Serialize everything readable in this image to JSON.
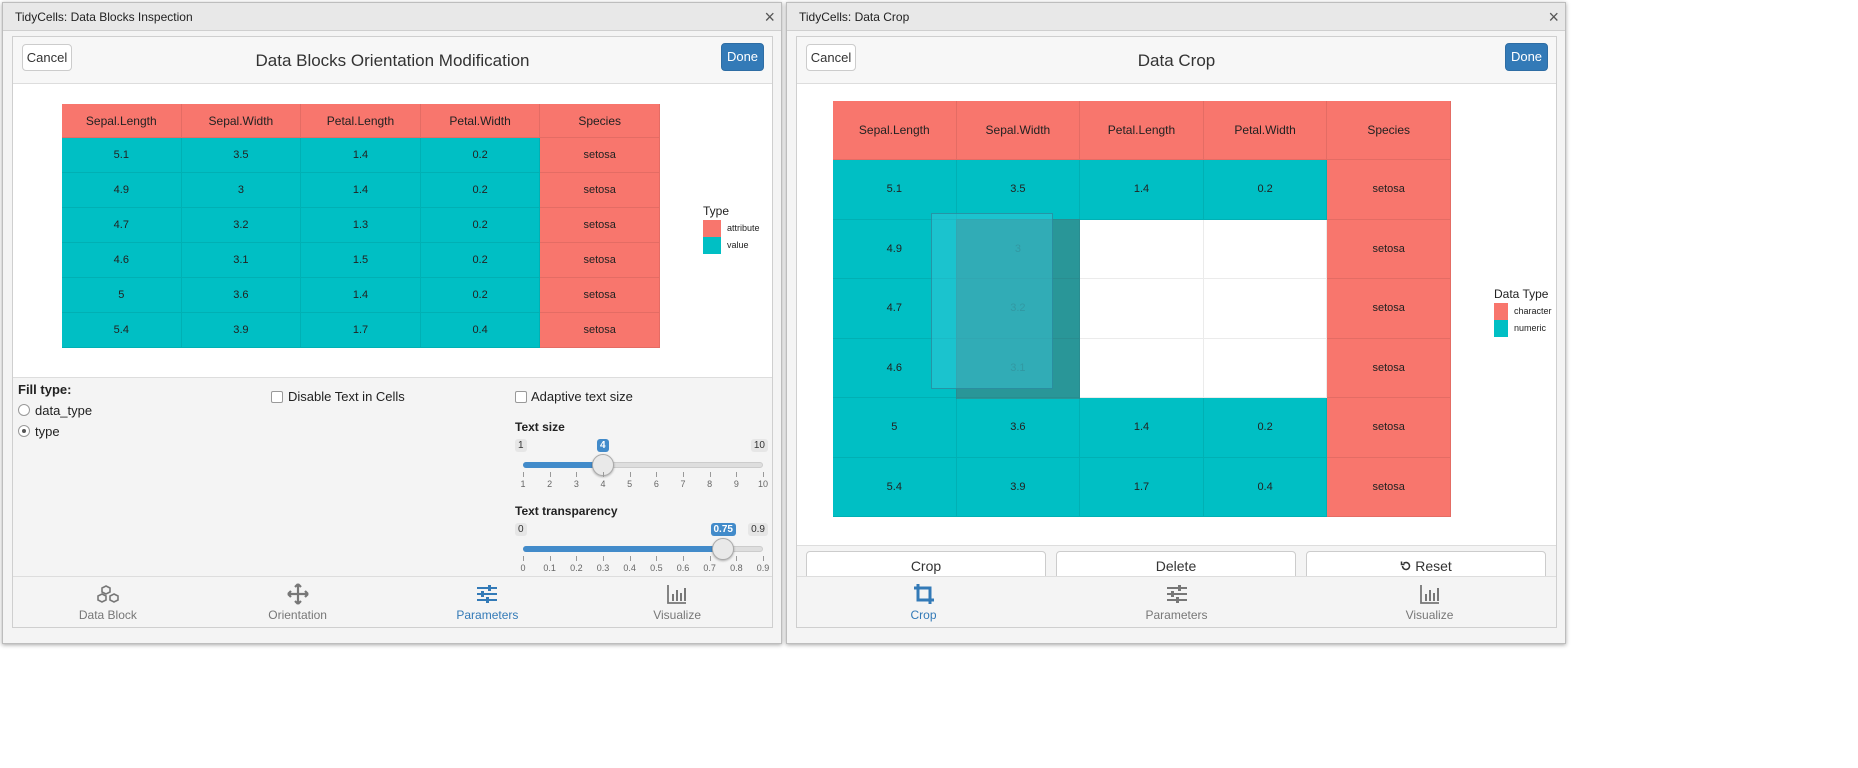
{
  "left": {
    "window_title": "TidyCells: Data Blocks Inspection",
    "close_glyph": "×",
    "modal_title": "Data Blocks Orientation Modification",
    "cancel_label": "Cancel",
    "done_label": "Done",
    "table": {
      "headers": [
        "Sepal.Length",
        "Sepal.Width",
        "Petal.Length",
        "Petal.Width",
        "Species"
      ],
      "rows": [
        [
          "5.1",
          "3.5",
          "1.4",
          "0.2",
          "setosa"
        ],
        [
          "4.9",
          "3",
          "1.4",
          "0.2",
          "setosa"
        ],
        [
          "4.7",
          "3.2",
          "1.3",
          "0.2",
          "setosa"
        ],
        [
          "4.6",
          "3.1",
          "1.5",
          "0.2",
          "setosa"
        ],
        [
          "5",
          "3.6",
          "1.4",
          "0.2",
          "setosa"
        ],
        [
          "5.4",
          "3.9",
          "1.7",
          "0.4",
          "setosa"
        ]
      ]
    },
    "legend": {
      "title": "Type",
      "items": [
        {
          "label": "attribute",
          "color": "#f8766d"
        },
        {
          "label": "value",
          "color": "#00bfc4"
        }
      ]
    },
    "controls": {
      "fill_type_label": "Fill type:",
      "fill_options": [
        "data_type",
        "type"
      ],
      "fill_selected": "type",
      "disable_text_label": "Disable Text in Cells",
      "adaptive_text_label": "Adaptive text size",
      "text_size": {
        "label": "Text size",
        "min": "1",
        "max": "10",
        "value": "4",
        "ticks": [
          "1",
          "2",
          "3",
          "4",
          "5",
          "6",
          "7",
          "8",
          "9",
          "10"
        ]
      },
      "text_transparency": {
        "label": "Text transparency",
        "min": "0",
        "max": "0.9",
        "value": "0.75",
        "ticks": [
          "0",
          "0.1",
          "0.2",
          "0.3",
          "0.4",
          "0.5",
          "0.6",
          "0.7",
          "0.8",
          "0.9"
        ]
      }
    },
    "tabs": [
      {
        "label": "Data Block",
        "icon": "cubes-icon"
      },
      {
        "label": "Orientation",
        "icon": "arrows-move-icon"
      },
      {
        "label": "Parameters",
        "icon": "sliders-icon"
      },
      {
        "label": "Visualize",
        "icon": "bar-chart-icon"
      }
    ],
    "active_tab": "Parameters"
  },
  "right": {
    "window_title": "TidyCells: Data Crop",
    "close_glyph": "×",
    "modal_title": "Data Crop",
    "cancel_label": "Cancel",
    "done_label": "Done",
    "table": {
      "headers": [
        "Sepal.Length",
        "Sepal.Width",
        "Petal.Length",
        "Petal.Width",
        "Species"
      ],
      "rows": [
        [
          "5.1",
          "3.5",
          "1.4",
          "0.2",
          "setosa"
        ],
        [
          "4.9",
          "3",
          "",
          "",
          "setosa"
        ],
        [
          "4.7",
          "3.2",
          "",
          "",
          "setosa"
        ],
        [
          "4.6",
          "3.1",
          "",
          "",
          "setosa"
        ],
        [
          "5",
          "3.6",
          "1.4",
          "0.2",
          "setosa"
        ],
        [
          "5.4",
          "3.9",
          "1.7",
          "0.4",
          "setosa"
        ]
      ]
    },
    "legend": {
      "title": "Data Type",
      "items": [
        {
          "label": "character",
          "color": "#f8766d"
        },
        {
          "label": "numeric",
          "color": "#00bfc4"
        }
      ]
    },
    "actions": {
      "crop": "Crop",
      "delete": "Delete",
      "reset": "Reset"
    },
    "tabs": [
      {
        "label": "Crop",
        "icon": "crop-icon"
      },
      {
        "label": "Parameters",
        "icon": "sliders-icon"
      },
      {
        "label": "Visualize",
        "icon": "bar-chart-icon"
      }
    ],
    "active_tab": "Crop"
  },
  "colors": {
    "attribute": "#f8766d",
    "value": "#00bfc4",
    "accent": "#337ab7"
  }
}
